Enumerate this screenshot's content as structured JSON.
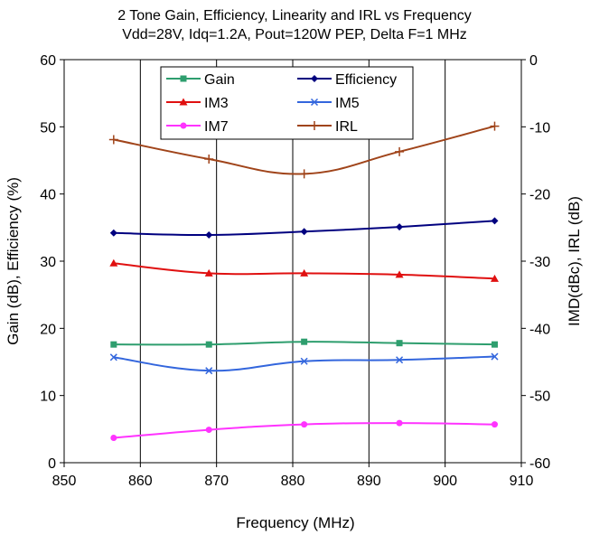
{
  "chart_data": {
    "type": "line",
    "title": "2 Tone Gain, Efficiency, Linearity and IRL vs Frequency",
    "subtitle": "Vdd=28V, Idq=1.2A, Pout=120W PEP, Delta F=1 MHz",
    "xlabel": "Frequency (MHz)",
    "ylabel": "Gain (dB), Efficiency (%)",
    "y2label": "IMD(dBc), IRL (dB)",
    "xlim": [
      850,
      910
    ],
    "xticks": [
      850,
      860,
      870,
      880,
      890,
      900,
      910
    ],
    "ylim": [
      0,
      60
    ],
    "yticks": [
      0,
      10,
      20,
      30,
      40,
      50,
      60
    ],
    "y2lim": [
      -60,
      0
    ],
    "y2ticks": [
      -60,
      -50,
      -40,
      -30,
      -20,
      -10,
      0
    ],
    "grid": "vertical",
    "legend_position": "top-center",
    "series": [
      {
        "name": "Gain",
        "axis": "left",
        "color": "#2e9e6e",
        "marker": "square",
        "x": [
          856.5,
          869,
          881.5,
          894,
          906.5
        ],
        "y": [
          17.6,
          17.6,
          18.0,
          17.8,
          17.6
        ]
      },
      {
        "name": "Efficiency",
        "axis": "left",
        "color": "#00007f",
        "marker": "diamond",
        "x": [
          856.5,
          869,
          881.5,
          894,
          906.5
        ],
        "y": [
          34.2,
          33.9,
          34.4,
          35.1,
          36.0
        ]
      },
      {
        "name": "IM3",
        "axis": "right",
        "color": "#e01010",
        "marker": "triangle",
        "x": [
          856.5,
          869,
          881.5,
          894,
          906.5
        ],
        "y": [
          -30.3,
          -31.8,
          -31.8,
          -32.0,
          -32.6
        ]
      },
      {
        "name": "IM5",
        "axis": "right",
        "color": "#3366dd",
        "marker": "x",
        "x": [
          856.5,
          869,
          881.5,
          894,
          906.5
        ],
        "y": [
          -44.3,
          -46.3,
          -44.9,
          -44.7,
          -44.2
        ]
      },
      {
        "name": "IM7",
        "axis": "right",
        "color": "#ff33ff",
        "marker": "circle",
        "x": [
          856.5,
          869,
          881.5,
          894,
          906.5
        ],
        "y": [
          -56.3,
          -55.1,
          -54.3,
          -54.1,
          -54.3
        ]
      },
      {
        "name": "IRL",
        "axis": "right",
        "color": "#a0441a",
        "marker": "plus",
        "x": [
          856.5,
          869,
          881.5,
          894,
          906.5
        ],
        "y": [
          -11.9,
          -14.8,
          -17.0,
          -13.7,
          -9.9
        ]
      }
    ]
  }
}
